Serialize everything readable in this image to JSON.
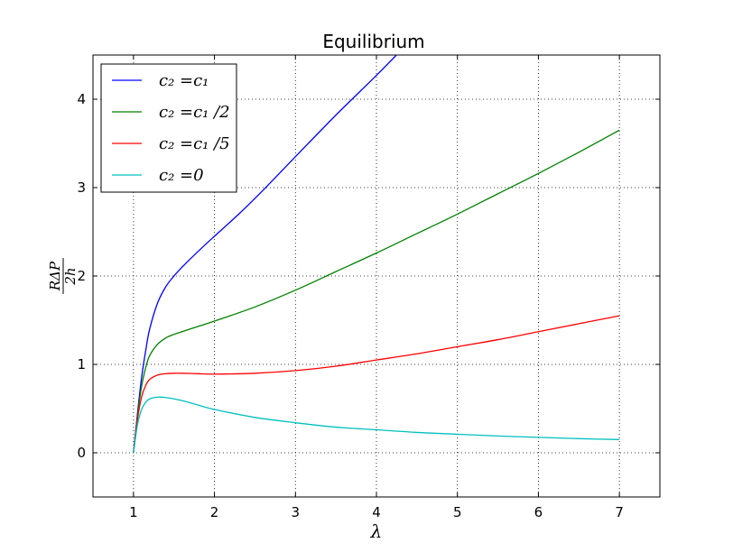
{
  "chart_data": {
    "type": "line",
    "title": "Equilibrium",
    "xlabel": "λ",
    "ylabel": {
      "numerator": "RΔP",
      "denominator": "2h"
    },
    "xlim": [
      0.5,
      7.5
    ],
    "ylim": [
      -0.5,
      4.5
    ],
    "xticks": [
      1,
      2,
      3,
      4,
      5,
      6,
      7
    ],
    "yticks": [
      0,
      1,
      2,
      3,
      4
    ],
    "grid": true,
    "legend_position": "top-left",
    "series": [
      {
        "name": "c₂ =c₁",
        "color": "#0000ff",
        "x": [
          1.0,
          1.05,
          1.1,
          1.15,
          1.2,
          1.3,
          1.4,
          1.5,
          1.6,
          1.8,
          2.0,
          2.3,
          2.6,
          3.0,
          3.5,
          4.0,
          4.3
        ],
        "y": [
          0.0,
          0.45,
          0.85,
          1.15,
          1.4,
          1.7,
          1.88,
          2.0,
          2.1,
          2.28,
          2.45,
          2.7,
          2.97,
          3.35,
          3.82,
          4.27,
          4.55
        ]
      },
      {
        "name": "c₂ =c₁ /2",
        "color": "#008000",
        "x": [
          1.0,
          1.05,
          1.1,
          1.15,
          1.2,
          1.3,
          1.4,
          1.5,
          1.6,
          1.8,
          2.0,
          2.5,
          3.0,
          3.5,
          4.0,
          4.5,
          5.0,
          5.5,
          6.0,
          6.5,
          7.0
        ],
        "y": [
          0.0,
          0.42,
          0.75,
          0.96,
          1.1,
          1.23,
          1.3,
          1.34,
          1.37,
          1.43,
          1.49,
          1.65,
          1.84,
          2.05,
          2.26,
          2.48,
          2.7,
          2.93,
          3.16,
          3.4,
          3.65
        ]
      },
      {
        "name": "c₂ =c₁ /5",
        "color": "#ff0000",
        "x": [
          1.0,
          1.05,
          1.1,
          1.15,
          1.2,
          1.3,
          1.4,
          1.5,
          1.6,
          1.8,
          2.0,
          2.5,
          3.0,
          3.5,
          4.0,
          4.5,
          5.0,
          5.5,
          6.0,
          6.5,
          7.0
        ],
        "y": [
          0.0,
          0.38,
          0.63,
          0.76,
          0.83,
          0.88,
          0.895,
          0.9,
          0.9,
          0.895,
          0.89,
          0.9,
          0.93,
          0.98,
          1.05,
          1.12,
          1.2,
          1.28,
          1.37,
          1.46,
          1.55
        ]
      },
      {
        "name": "c₂ =0",
        "color": "#00bfbf",
        "x": [
          1.0,
          1.05,
          1.1,
          1.15,
          1.2,
          1.3,
          1.4,
          1.5,
          1.6,
          1.8,
          2.0,
          2.5,
          3.0,
          3.5,
          4.0,
          4.5,
          5.0,
          5.5,
          6.0,
          6.5,
          7.0
        ],
        "y": [
          0.0,
          0.32,
          0.49,
          0.57,
          0.61,
          0.63,
          0.625,
          0.61,
          0.59,
          0.54,
          0.49,
          0.4,
          0.34,
          0.29,
          0.26,
          0.23,
          0.21,
          0.19,
          0.175,
          0.16,
          0.15
        ]
      }
    ]
  }
}
